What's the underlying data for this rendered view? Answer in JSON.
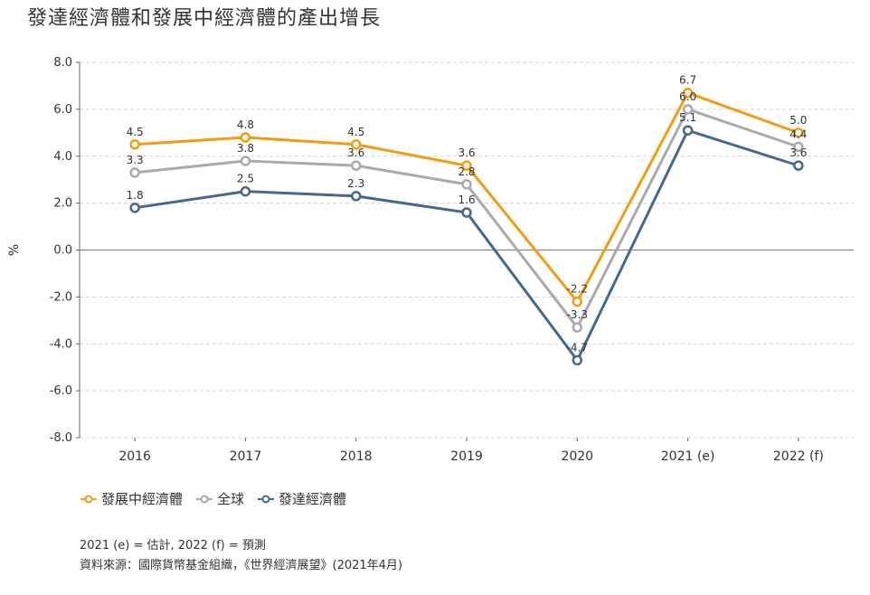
{
  "title": "發達經濟體和發展中經濟體的產出增長",
  "notes": {
    "estimate": "2021 (e) = 估計, 2022 (f) = 預測",
    "source": "資料來源：國際貨幣基金組織，《世界經濟展望》(2021年4月)"
  },
  "chart_data": {
    "type": "line",
    "title": "發達經濟體和發展中經濟體的產出增長",
    "ylabel": "%",
    "xlabel": "",
    "categories": [
      "2016",
      "2017",
      "2018",
      "2019",
      "2020",
      "2021 (e)",
      "2022 (f)"
    ],
    "ylim": [
      -8.0,
      8.0
    ],
    "yticks": [
      "8.0",
      "6.0",
      "4.0",
      "2.0",
      "0.0",
      "-2.0",
      "-4.0",
      "-6.0",
      "-8.0"
    ],
    "grid": true,
    "legend_position": "bottom-left",
    "series": [
      {
        "name": "發展中經濟體",
        "color": "#f39c12",
        "values": [
          4.5,
          4.8,
          4.5,
          3.6,
          -2.2,
          6.7,
          5.0
        ],
        "labels": [
          "4.5",
          "4.8",
          "4.5",
          "3.6",
          "-2.2",
          "6.7",
          "5.0"
        ]
      },
      {
        "name": "全球",
        "color": "#aaaaaa",
        "values": [
          3.3,
          3.8,
          3.6,
          2.8,
          -3.3,
          6.0,
          4.4
        ],
        "labels": [
          "3.3",
          "3.8",
          "3.6",
          "2.8",
          "-3.3",
          "6.0",
          "4.4"
        ]
      },
      {
        "name": "發達經濟體",
        "color": "#46688c",
        "values": [
          1.8,
          2.5,
          2.3,
          1.6,
          -4.7,
          5.1,
          3.6
        ],
        "labels": [
          "1.8",
          "2.5",
          "2.3",
          "1.6",
          "-4.7",
          "5.1",
          "3.6"
        ]
      }
    ]
  }
}
